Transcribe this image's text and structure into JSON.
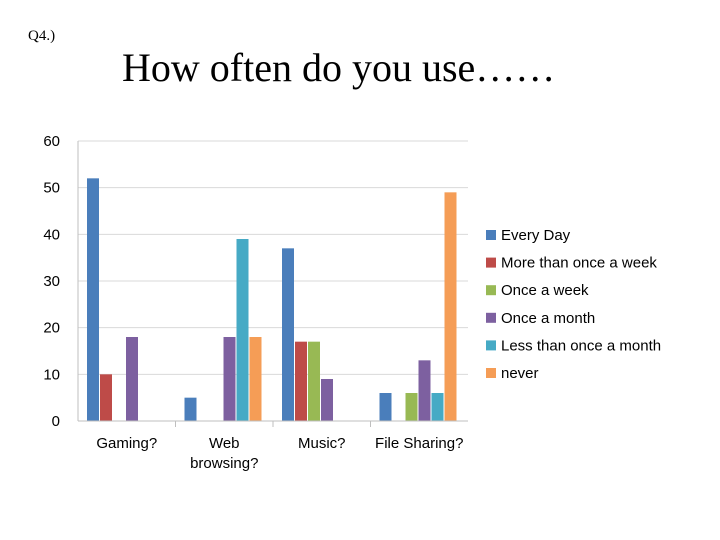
{
  "slide": {
    "question": "Q4.)",
    "title": "How often do you use……"
  },
  "chart_data": {
    "type": "bar",
    "categories": [
      [
        "Gaming?"
      ],
      [
        "Web",
        "browsing?"
      ],
      [
        "Music?"
      ],
      [
        "File Sharing?"
      ]
    ],
    "ylim": [
      0,
      60
    ],
    "yticks": [
      0,
      10,
      20,
      30,
      40,
      50,
      60
    ],
    "grid": true,
    "legend_position": "right",
    "series": [
      {
        "name": "Every Day",
        "color": "#4a7ebb",
        "values": [
          52,
          5,
          37,
          6
        ]
      },
      {
        "name": "More than once a week",
        "color": "#be4b48",
        "values": [
          10,
          0,
          17,
          0
        ]
      },
      {
        "name": "Once a week",
        "color": "#98b954",
        "values": [
          0,
          0,
          17,
          6
        ]
      },
      {
        "name": "Once a month",
        "color": "#7d60a0",
        "values": [
          18,
          18,
          9,
          13
        ]
      },
      {
        "name": "Less than once a month",
        "color": "#46aac5",
        "values": [
          0,
          39,
          0,
          6
        ]
      },
      {
        "name": "never",
        "color": "#f59d56",
        "values": [
          0,
          18,
          0,
          49
        ]
      }
    ]
  }
}
